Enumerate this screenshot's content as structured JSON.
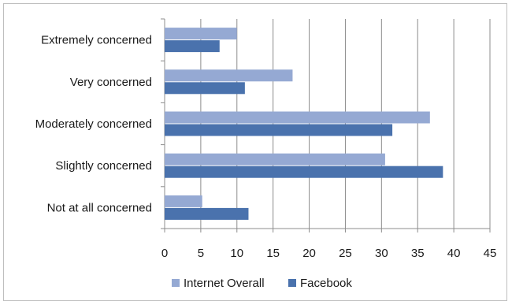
{
  "chart_data": {
    "type": "bar",
    "orientation": "horizontal",
    "categories": [
      "Extremely concerned",
      "Very concerned",
      "Moderately concerned",
      "Slightly concerned",
      "Not at all concerned"
    ],
    "series": [
      {
        "name": "Internet Overall",
        "color": "#95a9d3",
        "values": [
          10,
          17.7,
          36.7,
          30.5,
          5.2
        ]
      },
      {
        "name": "Facebook",
        "color": "#4a72ad",
        "values": [
          7.6,
          11.1,
          31.5,
          38.5,
          11.6
        ]
      }
    ],
    "xlim": [
      0,
      45
    ],
    "xticks": [
      0,
      5,
      10,
      15,
      20,
      25,
      30,
      35,
      40,
      45
    ],
    "grid": "vertical",
    "legend_position": "bottom",
    "title": "",
    "xlabel": "",
    "ylabel": ""
  }
}
